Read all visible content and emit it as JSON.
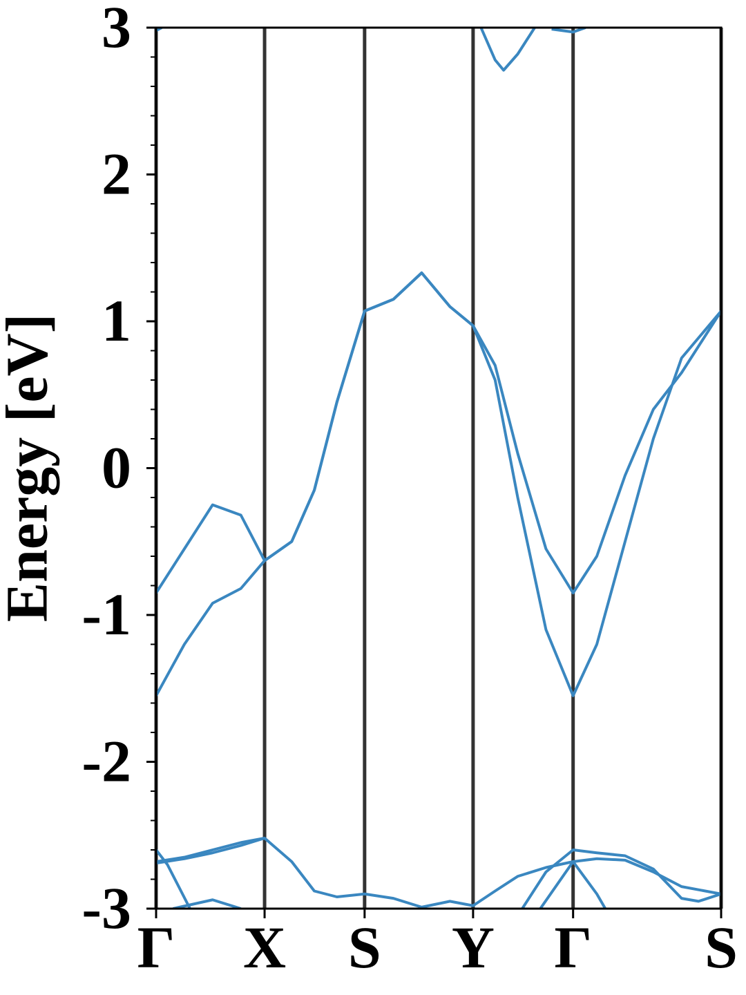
{
  "chart_data": {
    "type": "line",
    "y_label": "Energy [eV]",
    "xlim": [
      0,
      1
    ],
    "ylim": [
      -3,
      3
    ],
    "xticks": [
      {
        "value": 0,
        "label": "Γ"
      },
      {
        "value": 0.192,
        "label": "X"
      },
      {
        "value": 0.369,
        "label": "S"
      },
      {
        "value": 0.561,
        "label": "Y"
      },
      {
        "value": 0.738,
        "label": "Γ"
      },
      {
        "value": 1,
        "label": "S"
      }
    ],
    "yticks": [
      3,
      2,
      1,
      0,
      -1,
      -2,
      -3
    ],
    "yminorticks": [
      2.8,
      2.6,
      2.4,
      2.2,
      1.8,
      1.6,
      1.4,
      1.2,
      0.8,
      0.6,
      0.4,
      0.2,
      -0.2,
      -0.4,
      -0.6,
      -0.8,
      -1.2,
      -1.4,
      -1.6,
      -1.8,
      -2.2,
      -2.4,
      -2.6,
      -2.8
    ],
    "xgrid": true,
    "grid_color": "#333333",
    "series": [
      {
        "color": "#3a87c0",
        "x": [
          0,
          0.05,
          0.1,
          0.15,
          0.192,
          0.24,
          0.28,
          0.32,
          0.369,
          0.42,
          0.47,
          0.52,
          0.561,
          0.6,
          0.64,
          0.69,
          0.738,
          0.78,
          0.83,
          0.88,
          0.93,
          1
        ],
        "values": [
          -0.85,
          -0.55,
          -0.25,
          -0.32,
          -0.63,
          -0.5,
          -0.15,
          0.45,
          1.07,
          1.15,
          1.33,
          1.1,
          0.97,
          0.7,
          0.1,
          -0.55,
          -0.85,
          -0.6,
          -0.05,
          0.4,
          0.65,
          1.07
        ]
      },
      {
        "color": "#3a87c0",
        "x": [
          0,
          0.05,
          0.1,
          0.15,
          0.192,
          0.24,
          0.28,
          0.32,
          0.369,
          0.42,
          0.47,
          0.52,
          0.561,
          0.6,
          0.64,
          0.69,
          0.738,
          0.78,
          0.83,
          0.88,
          0.93,
          1
        ],
        "values": [
          -1.55,
          -1.2,
          -0.92,
          -0.82,
          -0.63,
          -0.5,
          -0.15,
          0.45,
          1.07,
          1.15,
          1.33,
          1.1,
          0.97,
          0.6,
          -0.2,
          -1.1,
          -1.55,
          -1.2,
          -0.5,
          0.2,
          0.75,
          1.07
        ]
      },
      {
        "color": "#3a87c0",
        "x": [
          0.575,
          0.6,
          0.615,
          0.64,
          0.67
        ],
        "values": [
          3,
          2.78,
          2.71,
          2.82,
          3
        ]
      },
      {
        "color": "#3a87c0",
        "x": [
          0.7,
          0.738,
          0.76
        ],
        "values": [
          2.99,
          2.97,
          3
        ]
      },
      {
        "color": "#3a87c0",
        "x": [
          0,
          0.01
        ],
        "values": [
          2.98,
          3
        ]
      },
      {
        "color": "#3a87c0",
        "x": [
          0,
          0.05,
          0.1,
          0.15,
          0.192,
          0.24,
          0.28,
          0.32,
          0.369,
          0.42,
          0.47,
          0.52,
          0.561,
          0.6,
          0.64,
          0.69,
          0.738,
          0.78,
          0.83,
          0.88,
          0.93,
          1
        ],
        "values": [
          -2.68,
          -2.65,
          -2.6,
          -2.55,
          -2.52,
          -2.68,
          -2.88,
          -2.92,
          -2.9,
          -2.93,
          -2.99,
          -2.95,
          -2.98,
          -2.88,
          -2.78,
          -2.72,
          -2.68,
          -2.66,
          -2.67,
          -2.75,
          -2.85,
          -2.9
        ]
      },
      {
        "color": "#3a87c0",
        "x": [
          0,
          0.05,
          0.1,
          0.15,
          0.192
        ],
        "values": [
          -2.69,
          -2.66,
          -2.62,
          -2.57,
          -2.52
        ]
      },
      {
        "color": "#3a87c0",
        "x": [
          0.648,
          0.69,
          0.738,
          0.78,
          0.83,
          0.88,
          0.93,
          0.96,
          1
        ],
        "values": [
          -3,
          -2.75,
          -2.6,
          -2.62,
          -2.64,
          -2.73,
          -2.93,
          -2.95,
          -2.9
        ]
      },
      {
        "color": "#3a87c0",
        "x": [
          0,
          0.02,
          0.06
        ],
        "values": [
          -2.6,
          -2.7,
          -3
        ]
      },
      {
        "color": "#3a87c0",
        "x": [
          0.03,
          0.1,
          0.15
        ],
        "values": [
          -3,
          -2.94,
          -3
        ]
      },
      {
        "color": "#3a87c0",
        "x": [
          0.68,
          0.738,
          0.78,
          0.795
        ],
        "values": [
          -3,
          -2.68,
          -2.9,
          -3
        ]
      }
    ]
  }
}
